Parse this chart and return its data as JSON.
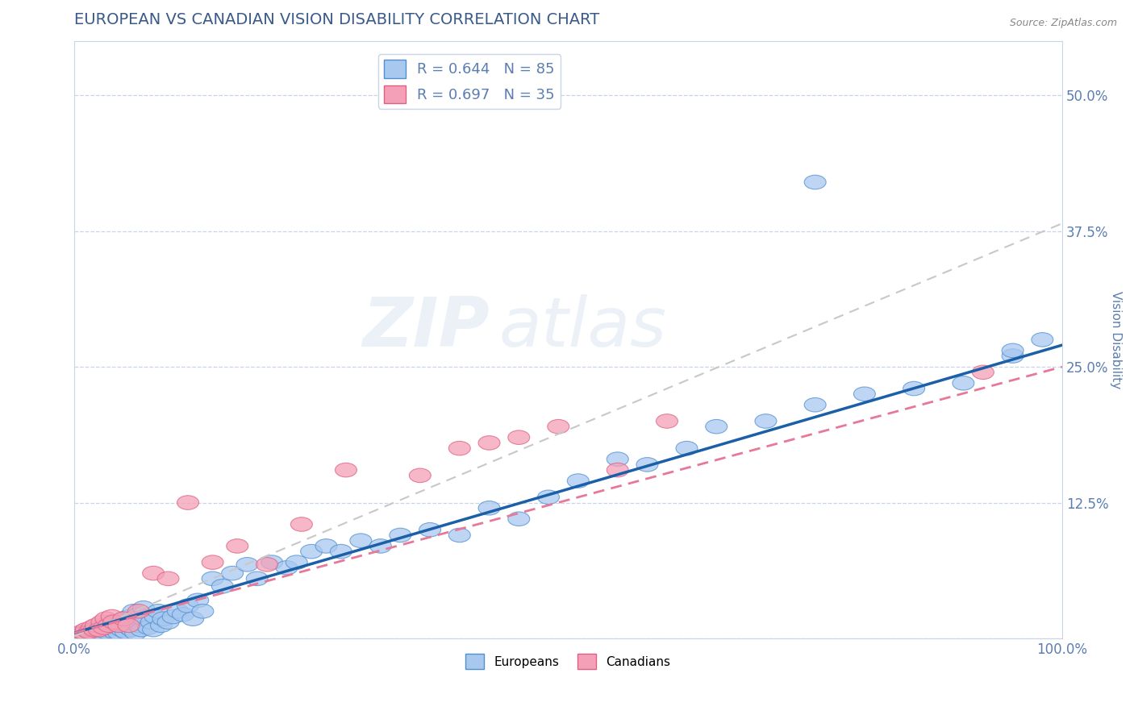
{
  "title": "EUROPEAN VS CANADIAN VISION DISABILITY CORRELATION CHART",
  "source": "Source: ZipAtlas.com",
  "ylabel": "Vision Disability",
  "xlabel": "",
  "xlim": [
    0,
    1
  ],
  "ylim": [
    0,
    0.55
  ],
  "yticks": [
    0.0,
    0.125,
    0.25,
    0.375,
    0.5
  ],
  "ytick_labels": [
    "",
    "12.5%",
    "25.0%",
    "37.5%",
    "50.0%"
  ],
  "xtick_labels": [
    "0.0%",
    "100.0%"
  ],
  "title_color": "#3a5a8a",
  "axis_color": "#5B7DB1",
  "watermark_line1": "ZIP",
  "watermark_line2": "atlas",
  "legend_r1": "R = 0.644   N = 85",
  "legend_r2": "R = 0.697   N = 35",
  "european_color": "#a8c8f0",
  "canadian_color": "#f4a0b8",
  "european_edge_color": "#5090d0",
  "canadian_edge_color": "#e06080",
  "european_line_color": "#1a5fa8",
  "canadian_line_color": "#e87898",
  "trend_line_color": "#c8c8c8",
  "eu_slope": 0.265,
  "eu_intercept": 0.005,
  "ca_slope": 0.245,
  "ca_intercept": 0.005,
  "trend_slope": 0.38,
  "trend_intercept": 0.002,
  "background_color": "#ffffff",
  "grid_color": "#c8d4e8",
  "title_fontsize": 14,
  "label_fontsize": 11,
  "tick_fontsize": 12,
  "europeans_x": [
    0.005,
    0.008,
    0.01,
    0.012,
    0.015,
    0.018,
    0.02,
    0.022,
    0.025,
    0.025,
    0.028,
    0.03,
    0.03,
    0.032,
    0.035,
    0.035,
    0.038,
    0.04,
    0.04,
    0.042,
    0.045,
    0.045,
    0.048,
    0.05,
    0.05,
    0.052,
    0.055,
    0.055,
    0.058,
    0.06,
    0.06,
    0.062,
    0.065,
    0.065,
    0.068,
    0.07,
    0.07,
    0.075,
    0.078,
    0.08,
    0.082,
    0.085,
    0.088,
    0.09,
    0.095,
    0.1,
    0.105,
    0.11,
    0.115,
    0.12,
    0.125,
    0.13,
    0.14,
    0.15,
    0.16,
    0.175,
    0.185,
    0.2,
    0.215,
    0.225,
    0.24,
    0.255,
    0.27,
    0.29,
    0.31,
    0.33,
    0.36,
    0.39,
    0.42,
    0.45,
    0.48,
    0.51,
    0.55,
    0.58,
    0.62,
    0.65,
    0.7,
    0.75,
    0.8,
    0.85,
    0.9,
    0.95,
    0.98,
    0.75,
    0.95
  ],
  "europeans_y": [
    0.003,
    0.005,
    0.004,
    0.006,
    0.005,
    0.007,
    0.004,
    0.008,
    0.006,
    0.01,
    0.005,
    0.008,
    0.012,
    0.006,
    0.01,
    0.015,
    0.008,
    0.006,
    0.012,
    0.01,
    0.005,
    0.015,
    0.008,
    0.012,
    0.018,
    0.006,
    0.01,
    0.02,
    0.008,
    0.015,
    0.025,
    0.005,
    0.012,
    0.022,
    0.008,
    0.018,
    0.028,
    0.01,
    0.015,
    0.008,
    0.02,
    0.025,
    0.012,
    0.018,
    0.015,
    0.02,
    0.025,
    0.022,
    0.03,
    0.018,
    0.035,
    0.025,
    0.055,
    0.048,
    0.06,
    0.068,
    0.055,
    0.07,
    0.065,
    0.07,
    0.08,
    0.085,
    0.08,
    0.09,
    0.085,
    0.095,
    0.1,
    0.095,
    0.12,
    0.11,
    0.13,
    0.145,
    0.165,
    0.16,
    0.175,
    0.195,
    0.2,
    0.215,
    0.225,
    0.23,
    0.235,
    0.26,
    0.275,
    0.42,
    0.265
  ],
  "canadians_x": [
    0.005,
    0.008,
    0.01,
    0.012,
    0.015,
    0.018,
    0.02,
    0.022,
    0.025,
    0.028,
    0.03,
    0.032,
    0.035,
    0.038,
    0.04,
    0.045,
    0.05,
    0.055,
    0.065,
    0.08,
    0.095,
    0.115,
    0.14,
    0.165,
    0.195,
    0.23,
    0.275,
    0.35,
    0.39,
    0.42,
    0.45,
    0.49,
    0.55,
    0.6,
    0.92
  ],
  "canadians_y": [
    0.004,
    0.006,
    0.005,
    0.008,
    0.006,
    0.01,
    0.008,
    0.012,
    0.008,
    0.015,
    0.01,
    0.018,
    0.012,
    0.02,
    0.015,
    0.012,
    0.018,
    0.012,
    0.025,
    0.06,
    0.055,
    0.125,
    0.07,
    0.085,
    0.068,
    0.105,
    0.155,
    0.15,
    0.175,
    0.18,
    0.185,
    0.195,
    0.155,
    0.2,
    0.245
  ]
}
